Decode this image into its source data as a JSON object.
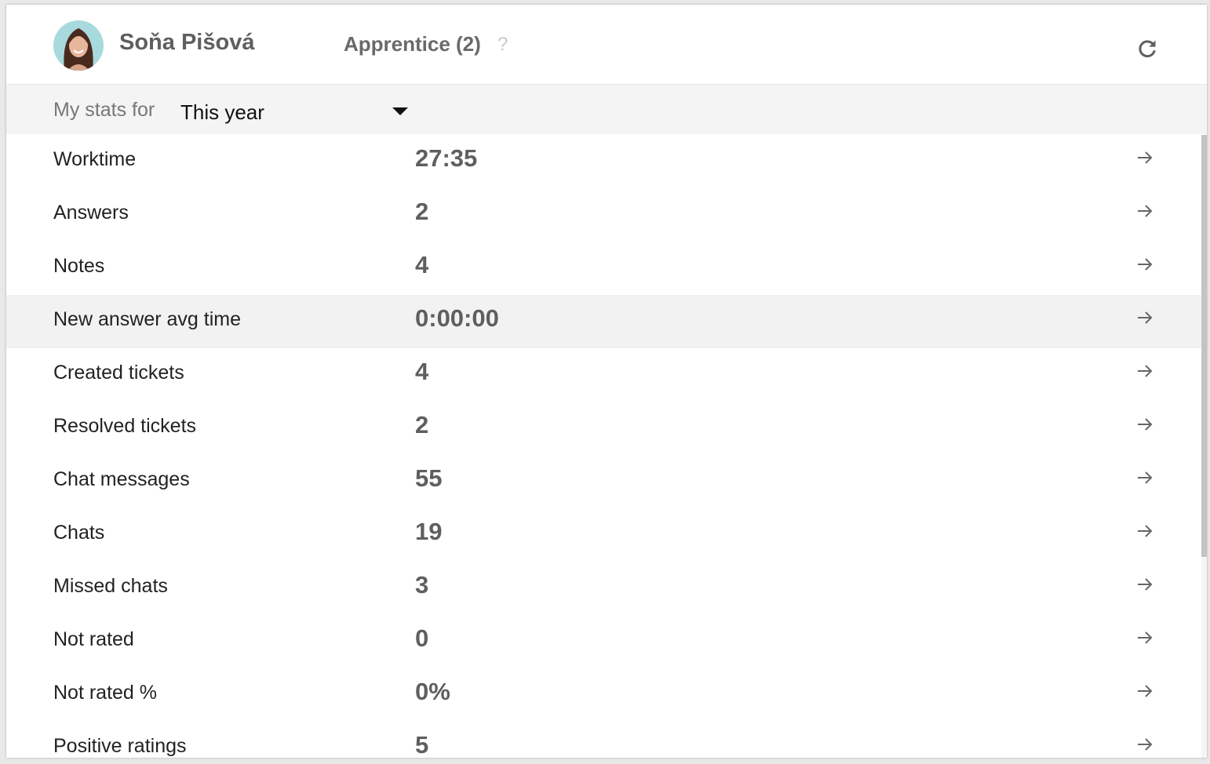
{
  "header": {
    "user_name": "Soňa Pišová",
    "level": "Apprentice (2)",
    "help": "?"
  },
  "filter": {
    "label": "My stats for",
    "selected": "This year"
  },
  "stats": [
    {
      "label": "Worktime",
      "value": "27:35"
    },
    {
      "label": "Answers",
      "value": "2"
    },
    {
      "label": "Notes",
      "value": "4"
    },
    {
      "label": "New answer avg time",
      "value": "0:00:00"
    },
    {
      "label": "Created tickets",
      "value": "4"
    },
    {
      "label": "Resolved tickets",
      "value": "2"
    },
    {
      "label": "Chat messages",
      "value": "55"
    },
    {
      "label": "Chats",
      "value": "19"
    },
    {
      "label": "Missed chats",
      "value": "3"
    },
    {
      "label": "Not rated",
      "value": "0"
    },
    {
      "label": "Not rated %",
      "value": "0%"
    },
    {
      "label": "Positive ratings",
      "value": "5"
    }
  ]
}
